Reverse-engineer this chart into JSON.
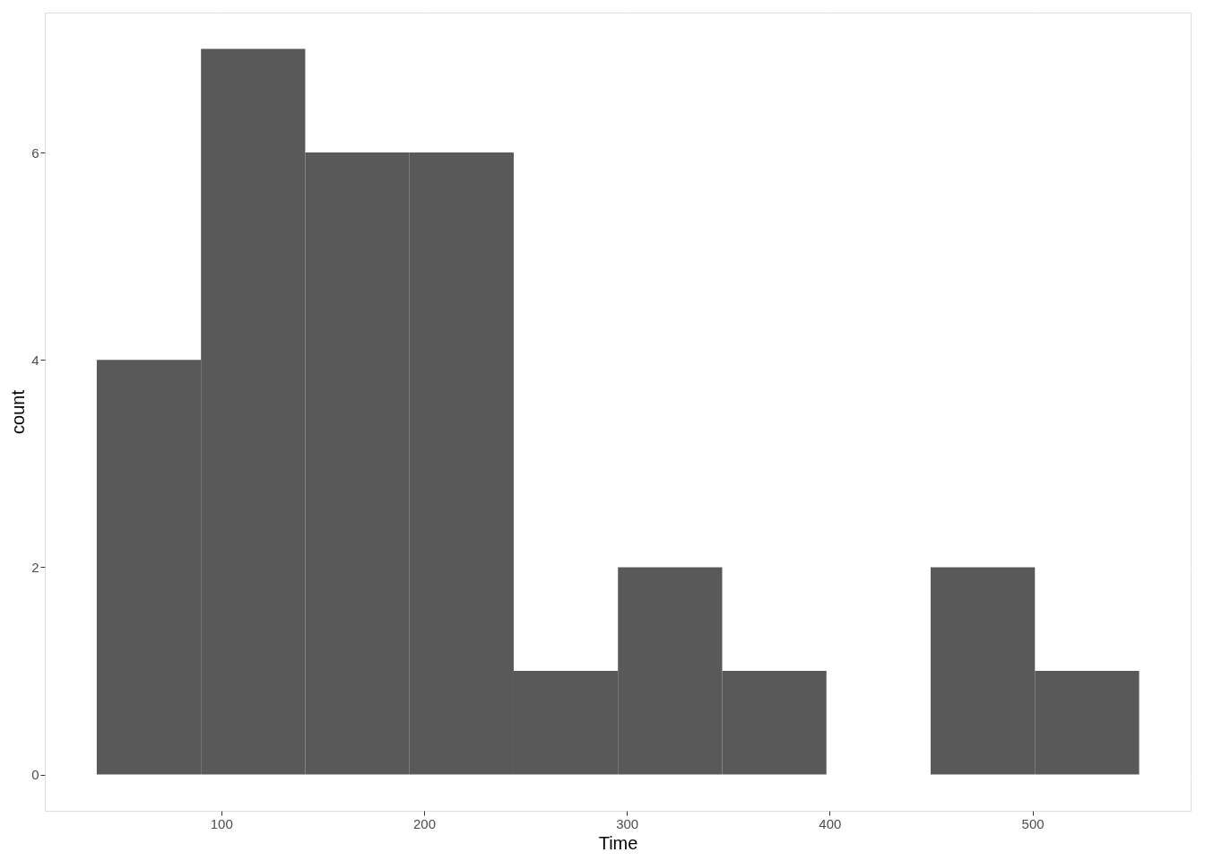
{
  "chart_data": {
    "type": "histogram",
    "xlabel": "Time",
    "ylabel": "count",
    "bins": [
      38.6,
      90,
      141.4,
      192.8,
      244.2,
      295.6,
      347,
      398.4,
      449.8,
      501.2,
      552.6
    ],
    "values": [
      4,
      7,
      6,
      6,
      1,
      2,
      1,
      0,
      2,
      1
    ],
    "color": "#595959",
    "xlim": [
      13,
      578
    ],
    "ylim": [
      -0.35,
      7.35
    ],
    "xticks": [
      100,
      200,
      300,
      400,
      500
    ],
    "yticks": [
      0,
      2,
      4,
      6
    ],
    "grid": true
  }
}
